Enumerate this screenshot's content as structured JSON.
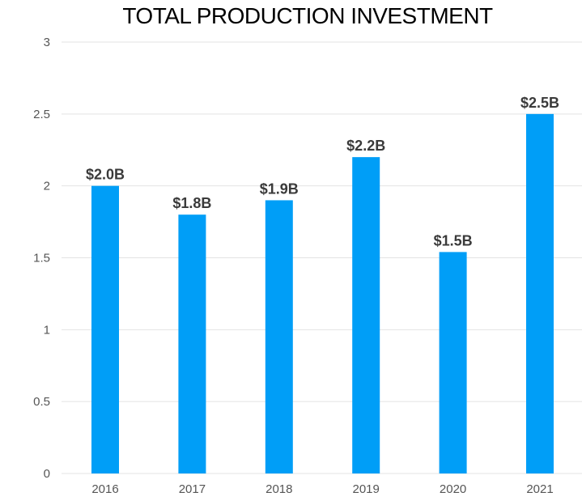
{
  "chart_data": {
    "type": "bar",
    "title": "TOTAL PRODUCTION INVESTMENT",
    "categories": [
      "2016",
      "2017",
      "2018",
      "2019",
      "2020",
      "2021"
    ],
    "values": [
      2.0,
      1.8,
      1.9,
      2.2,
      1.54,
      2.5
    ],
    "data_labels": [
      "$2.0B",
      "$1.8B",
      "$1.9B",
      "$2.2B",
      "$1.5B",
      "$2.5B"
    ],
    "y_ticks": [
      "0",
      "0.5",
      "1",
      "1.5",
      "2",
      "2.5",
      "3"
    ],
    "ylim": [
      0,
      3
    ],
    "grid": true,
    "legend": "none",
    "bar_color": "#009ef7"
  }
}
